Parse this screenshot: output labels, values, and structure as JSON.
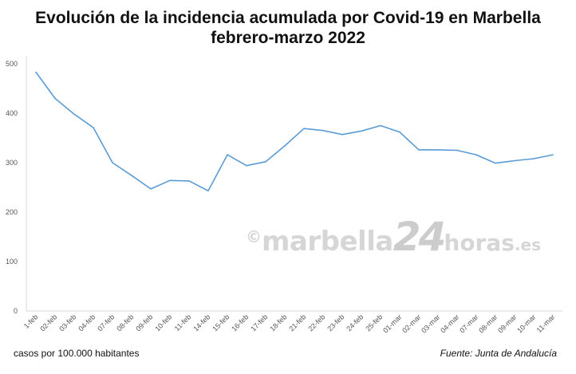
{
  "chart_data": {
    "type": "line",
    "title_line1": "Evolución de la incidencia acumulada por Covid-19 en Marbella",
    "title_line2": "febrero-marzo 2022",
    "xlabel": "",
    "ylabel": "",
    "ylim": [
      0,
      500
    ],
    "yticks": [
      0,
      100,
      200,
      300,
      400,
      500
    ],
    "grid": false,
    "line_color": "#5b9bd5",
    "categories": [
      "1-feb",
      "02-feb",
      "03-feb",
      "04-feb",
      "07-feb",
      "08-feb",
      "09-feb",
      "10-feb",
      "11-feb",
      "14-feb",
      "15-feb",
      "16-feb",
      "17-feb",
      "18-feb",
      "21-feb",
      "22-feb",
      "23-feb",
      "24-feb",
      "25-feb",
      "01-mar",
      "02-mar",
      "03-mar",
      "04-mar",
      "07-mar",
      "08-mar",
      "09-mar",
      "10-mar",
      "11-mar"
    ],
    "values": [
      483,
      430,
      398,
      371,
      300,
      274,
      247,
      264,
      263,
      243,
      316,
      294,
      302,
      334,
      369,
      365,
      357,
      364,
      375,
      362,
      326,
      326,
      325,
      316,
      299,
      304,
      308,
      316
    ]
  },
  "footer": {
    "units": "casos por 100.000 habitantes",
    "source": "Fuente: Junta de Andalucía"
  },
  "watermark": {
    "copyright": "©",
    "name": "marbella",
    "num": "24",
    "horas": "horas",
    "tld": ".es"
  }
}
